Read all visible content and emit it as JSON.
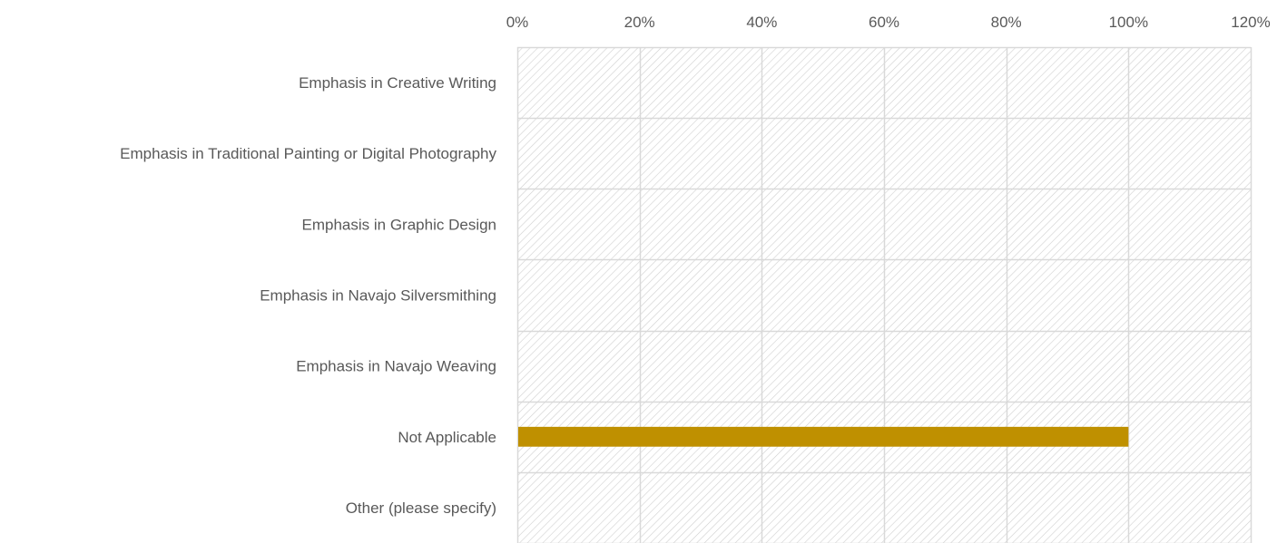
{
  "chart_data": {
    "type": "bar",
    "orientation": "horizontal",
    "categories": [
      "Emphasis in Creative Writing",
      "Emphasis in Traditional Painting or Digital Photography",
      "Emphasis in Graphic Design",
      "Emphasis in Navajo Silversmithing",
      "Emphasis in Navajo Weaving",
      "Not Applicable",
      "Other (please specify)"
    ],
    "values": [
      0,
      0,
      0,
      0,
      0,
      100,
      0
    ],
    "value_unit": "%",
    "xlim": [
      0,
      120
    ],
    "x_ticks": [
      "0%",
      "20%",
      "40%",
      "60%",
      "80%",
      "100%",
      "120%"
    ],
    "x_axis_position": "top",
    "grid": true,
    "plot_background": "hatched",
    "legend": "none",
    "title": "",
    "xlabel": "",
    "ylabel": "",
    "colors": {
      "bar": "#BF9000",
      "grid": "#D9D9D9",
      "hatch": "#CFCFCF",
      "text": "#595959"
    }
  }
}
